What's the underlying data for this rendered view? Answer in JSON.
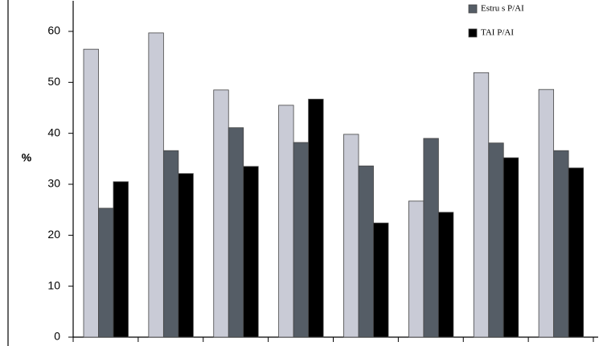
{
  "chart_data": {
    "type": "bar",
    "y_label": "%",
    "categories": [
      null,
      null,
      null,
      null,
      null,
      null,
      null,
      null
    ],
    "series": [
      {
        "color": "#c9cbd6",
        "values": [
          56.5,
          59.7,
          48.5,
          45.5,
          39.8,
          26.7,
          51.9,
          48.6
        ]
      },
      {
        "name": "Estru s P/AI",
        "color": "#555d66",
        "values": [
          25.3,
          36.6,
          41.1,
          38.2,
          33.6,
          39.0,
          38.1,
          36.6
        ]
      },
      {
        "name": "TAI  P/AI",
        "color": "#000000",
        "values": [
          30.5,
          32.1,
          33.5,
          46.7,
          22.4,
          24.5,
          35.2,
          33.2
        ]
      }
    ],
    "ylim": [
      0,
      66
    ],
    "yticks": [
      0,
      10,
      20,
      30,
      40,
      50,
      60
    ],
    "grid": false,
    "legend": "top-right"
  }
}
